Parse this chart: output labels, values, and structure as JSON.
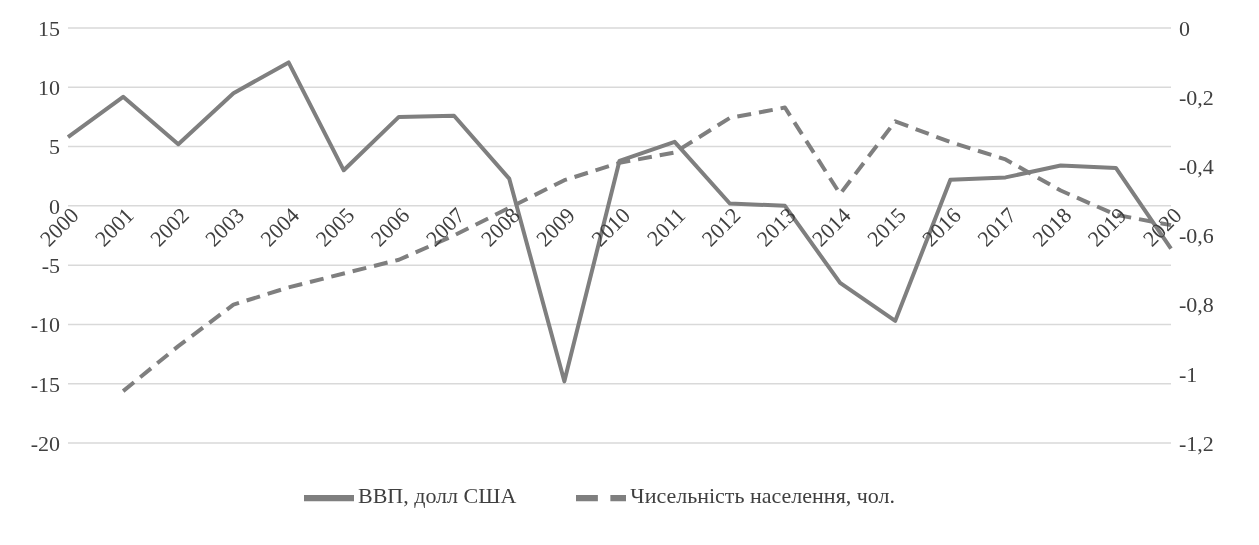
{
  "chart_data": {
    "type": "line",
    "categories": [
      "2000",
      "2001",
      "2002",
      "2003",
      "2004",
      "2005",
      "2006",
      "2007",
      "2008",
      "2009",
      "2010",
      "2011",
      "2012",
      "2013",
      "2014",
      "2015",
      "2016",
      "2017",
      "2018",
      "2019",
      "2020"
    ],
    "series": [
      {
        "name": "ВВП, долл США",
        "color": "#7f7f7f",
        "line_style": "solid",
        "values": [
          5.8,
          9.2,
          5.2,
          9.5,
          12.1,
          3.0,
          7.5,
          7.6,
          2.3,
          -14.8,
          3.8,
          5.4,
          0.2,
          0.0,
          -6.5,
          -9.7,
          2.2,
          2.4,
          3.4,
          3.2,
          -3.6
        ]
      },
      {
        "name": "Чисельність населення, чол.",
        "color": "#7f7f7f",
        "line_style": "dashed",
        "axis": "y2",
        "values": [
          null,
          -1.05,
          -0.92,
          -0.8,
          -0.75,
          -0.71,
          -0.67,
          -0.6,
          -0.52,
          -0.44,
          -0.39,
          -0.36,
          -0.26,
          -0.23,
          -0.48,
          -0.27,
          -0.33,
          -0.38,
          -0.47,
          -0.54,
          -0.57
        ]
      }
    ],
    "ylim": [
      -20,
      15
    ],
    "yticks": [
      -20,
      -15,
      -10,
      -5,
      0,
      5,
      10,
      15
    ],
    "y2lim": [
      -1.2,
      0
    ],
    "y2ticks": [
      {
        "value": -1.2,
        "label": "-1,2"
      },
      {
        "value": -1,
        "label": "-1"
      },
      {
        "value": -0.8,
        "label": "-0,8"
      },
      {
        "value": -0.6,
        "label": "-0,6"
      },
      {
        "value": -0.4,
        "label": "-0,4"
      },
      {
        "value": -0.2,
        "label": "-0,2"
      },
      {
        "value": 0,
        "label": "0"
      }
    ],
    "grid": "y",
    "legend": "bottom",
    "marker": "none"
  }
}
